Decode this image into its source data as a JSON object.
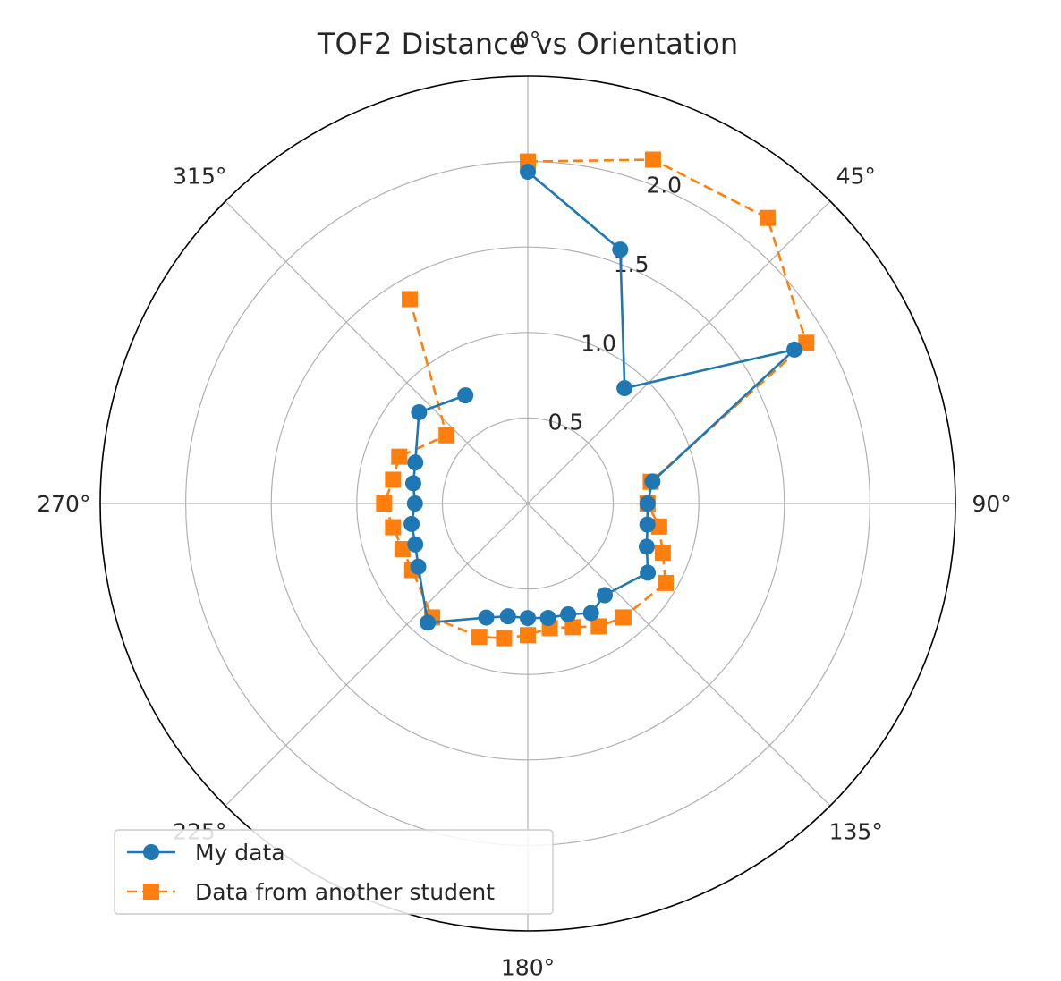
{
  "chart_data": {
    "type": "line",
    "subtype": "polar",
    "title": "TOF2 Distance vs Orientation",
    "theta_direction": "clockwise",
    "theta_zero_location": "top",
    "theta_ticks": [
      0,
      45,
      90,
      135,
      180,
      225,
      270,
      315
    ],
    "theta_tick_labels": [
      "0°",
      "45°",
      "90°",
      "135°",
      "180°",
      "225°",
      "270°",
      "315°"
    ],
    "r_ticks": [
      0.5,
      1.0,
      1.5,
      2.0
    ],
    "r_tick_labels": [
      "0.5",
      "1.0",
      "1.5",
      "2.0"
    ],
    "r_gridlines": [
      0.5,
      1.0,
      1.5,
      2.0,
      2.5
    ],
    "rlim": [
      0,
      2.5
    ],
    "r_label_angle": 22.5,
    "grid": true,
    "legend_position": "lower-left",
    "series": [
      {
        "name": "My data",
        "color": "#1f77b4",
        "marker": "circle",
        "linestyle": "solid",
        "theta": [
          0,
          20,
          40,
          60,
          80,
          90,
          100,
          110,
          120,
          140,
          150,
          160,
          170,
          180,
          190,
          200,
          220,
          240,
          250,
          260,
          270,
          280,
          290,
          310,
          330
        ],
        "r": [
          1.94,
          1.58,
          0.88,
          1.8,
          0.74,
          0.7,
          0.71,
          0.74,
          0.81,
          0.7,
          0.74,
          0.69,
          0.68,
          0.67,
          0.67,
          0.71,
          0.91,
          0.74,
          0.7,
          0.69,
          0.66,
          0.68,
          0.7,
          0.83,
          0.73
        ]
      },
      {
        "name": "Data from another student",
        "color": "#ff7f0e",
        "marker": "square",
        "linestyle": "dashed",
        "theta": [
          0,
          20,
          40,
          60,
          80,
          90,
          100,
          110,
          120,
          140,
          150,
          160,
          170,
          180,
          190,
          200,
          220,
          240,
          250,
          260,
          270,
          280,
          290,
          310,
          330
        ],
        "r": [
          2.0,
          2.14,
          2.18,
          1.88,
          0.73,
          0.7,
          0.78,
          0.84,
          0.93,
          0.87,
          0.83,
          0.77,
          0.74,
          0.77,
          0.8,
          0.83,
          0.87,
          0.78,
          0.78,
          0.8,
          0.84,
          0.8,
          0.8,
          0.62,
          1.38
        ]
      }
    ]
  }
}
